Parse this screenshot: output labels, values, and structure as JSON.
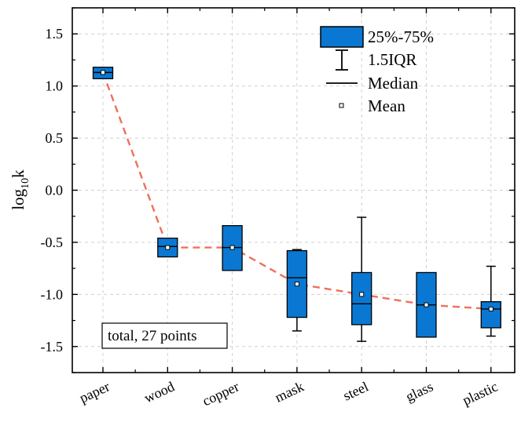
{
  "chart_data": {
    "type": "box",
    "ylabel": "log10k",
    "ylabel_base": "log",
    "ylabel_sub": "10",
    "ylabel_var": "k",
    "ylim": [
      -1.75,
      1.75
    ],
    "yticks": [
      -1.5,
      -1.0,
      -0.5,
      0.0,
      0.5,
      1.0,
      1.5
    ],
    "ytick_labels": [
      "-1.5",
      "-1.0",
      "-0.5",
      "0.0",
      "0.5",
      "1.0",
      "1.5"
    ],
    "grid": true,
    "box_color": "#0a78d2",
    "mean_line_color": "#f0705a",
    "categories": [
      "paper",
      "wood",
      "copper",
      "mask",
      "steel",
      "glass",
      "plastic"
    ],
    "boxes": [
      {
        "category": "paper",
        "q1": 1.07,
        "median": 1.13,
        "q3": 1.18,
        "whisker_low": 1.07,
        "whisker_high": 1.18,
        "mean": 1.13
      },
      {
        "category": "wood",
        "q1": -0.64,
        "median": -0.54,
        "q3": -0.46,
        "whisker_low": -0.64,
        "whisker_high": -0.46,
        "mean": -0.55
      },
      {
        "category": "copper",
        "q1": -0.77,
        "median": -0.55,
        "q3": -0.34,
        "whisker_low": -0.77,
        "whisker_high": -0.34,
        "mean": -0.55
      },
      {
        "category": "mask",
        "q1": -1.22,
        "median": -0.84,
        "q3": -0.58,
        "whisker_low": -1.35,
        "whisker_high": -0.57,
        "mean": -0.9
      },
      {
        "category": "steel",
        "q1": -1.29,
        "median": -1.09,
        "q3": -0.79,
        "whisker_low": -1.45,
        "whisker_high": -0.26,
        "mean": -1.0
      },
      {
        "category": "glass",
        "q1": -1.41,
        "median": -1.1,
        "q3": -0.79,
        "whisker_low": -1.41,
        "whisker_high": -0.79,
        "mean": -1.1
      },
      {
        "category": "plastic",
        "q1": -1.32,
        "median": -1.14,
        "q3": -1.07,
        "whisker_low": -1.4,
        "whisker_high": -0.73,
        "mean": -1.14
      }
    ],
    "legend": {
      "placement": "top-right",
      "items": [
        {
          "key": "box",
          "label": "25%-75%"
        },
        {
          "key": "whisker",
          "label": "1.5IQR"
        },
        {
          "key": "median",
          "label": "Median"
        },
        {
          "key": "mean",
          "label": "Mean"
        }
      ]
    },
    "annotation": "total, 27 points"
  }
}
